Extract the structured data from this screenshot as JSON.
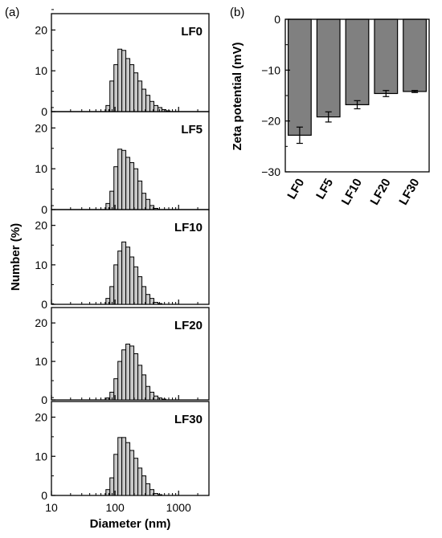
{
  "panels": {
    "a_label": "(a)",
    "b_label": "(b)"
  },
  "chart_data": [
    {
      "type": "bar",
      "panel": "(a)",
      "kind": "histogram-stack",
      "xscale": "log",
      "xlim": [
        10,
        3000
      ],
      "xticks": [
        10,
        100,
        1000
      ],
      "xticklabels": [
        "10",
        "100",
        "1000"
      ],
      "xlabel": "Diameter (nm)",
      "ylabel": "Number (%)",
      "ylim": [
        0,
        24
      ],
      "yticks": [
        0,
        10,
        20
      ],
      "bin_edges": [
        72,
        83,
        96,
        111,
        128,
        148,
        171,
        198,
        229,
        265,
        306,
        354,
        409,
        473,
        547,
        632,
        731
      ],
      "series": [
        {
          "name": "LF0",
          "values": [
            1.5,
            7.5,
            11.5,
            15.3,
            15.0,
            13.0,
            11.5,
            9.5,
            7.5,
            5.5,
            4.0,
            2.5,
            1.5,
            1.0,
            0.5,
            0.2
          ]
        },
        {
          "name": "LF5",
          "values": [
            1.5,
            4.5,
            10.5,
            14.8,
            14.5,
            12.8,
            11.5,
            10.0,
            7.0,
            4.0,
            2.5,
            1.0,
            0.3,
            0,
            0,
            0
          ]
        },
        {
          "name": "LF10",
          "values": [
            1.5,
            4.5,
            10.0,
            13.5,
            15.8,
            14.5,
            12.0,
            9.5,
            7.0,
            4.5,
            2.5,
            1.5,
            0.5,
            0.2,
            0,
            0
          ]
        },
        {
          "name": "LF20",
          "values": [
            0.5,
            2.0,
            5.5,
            10.0,
            13.0,
            14.5,
            14.0,
            12.0,
            9.0,
            6.5,
            3.5,
            2.0,
            1.0,
            0.5,
            0.2,
            0
          ]
        },
        {
          "name": "LF30",
          "values": [
            1.5,
            4.5,
            10.5,
            14.8,
            14.8,
            13.5,
            11.5,
            9.5,
            7.0,
            5.0,
            3.0,
            1.5,
            0.5,
            0.2,
            0,
            0
          ]
        }
      ]
    },
    {
      "type": "bar",
      "panel": "(b)",
      "categories": [
        "LF0",
        "LF5",
        "LF10",
        "LF20",
        "LF30"
      ],
      "values": [
        -22.8,
        -19.2,
        -16.8,
        -14.6,
        -14.2
      ],
      "errors": [
        1.6,
        1.0,
        0.8,
        0.6,
        0.2
      ],
      "ylabel": "Zeta potential (mV)",
      "ylim": [
        -30,
        0
      ],
      "yticks": [
        0,
        -10,
        -20,
        -30
      ],
      "yticklabels": [
        "0",
        "−10",
        "−20",
        "−30"
      ],
      "bar_color": "#808080"
    }
  ]
}
